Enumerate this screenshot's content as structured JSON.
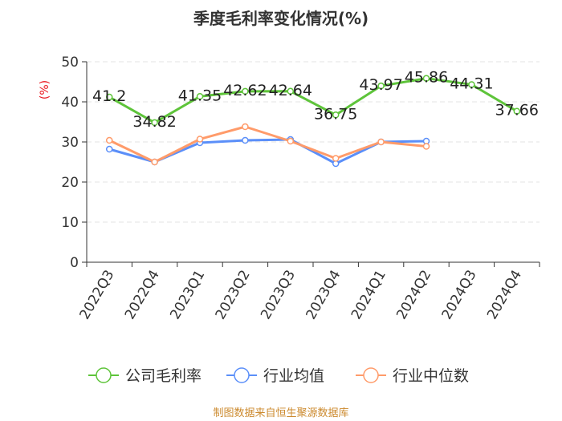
{
  "chart_data": {
    "type": "line",
    "title": "季度毛利率变化情况(%)",
    "ylabel": "(%)",
    "ylim": [
      0,
      50
    ],
    "yticks": [
      0,
      10,
      20,
      30,
      40,
      50
    ],
    "categories": [
      "2022Q3",
      "2022Q4",
      "2023Q1",
      "2023Q2",
      "2023Q3",
      "2023Q4",
      "2024Q1",
      "2024Q2",
      "2024Q3",
      "2024Q4"
    ],
    "series": [
      {
        "name": "公司毛利率",
        "color": "#5ec43a",
        "labeled": true,
        "values": [
          41.2,
          34.82,
          41.35,
          42.62,
          42.64,
          36.75,
          43.97,
          45.86,
          44.31,
          37.66
        ],
        "labels": [
          "41.2",
          "34.82",
          "41.35",
          "42.62",
          "42.64",
          "36.75",
          "43.97",
          "45.86",
          "44.31",
          "37.66"
        ]
      },
      {
        "name": "行业均值",
        "color": "#5b8ff9",
        "labeled": false,
        "values": [
          28.2,
          25.0,
          29.8,
          30.4,
          30.6,
          24.6,
          30.0,
          30.2,
          null,
          null
        ]
      },
      {
        "name": "行业中位数",
        "color": "#ff9b6a",
        "labeled": false,
        "values": [
          30.4,
          25.0,
          30.7,
          33.8,
          30.2,
          25.9,
          30.0,
          28.9,
          null,
          null
        ]
      }
    ],
    "grid": true,
    "legend_position": "bottom"
  },
  "source": "制图数据来自恒生聚源数据库"
}
